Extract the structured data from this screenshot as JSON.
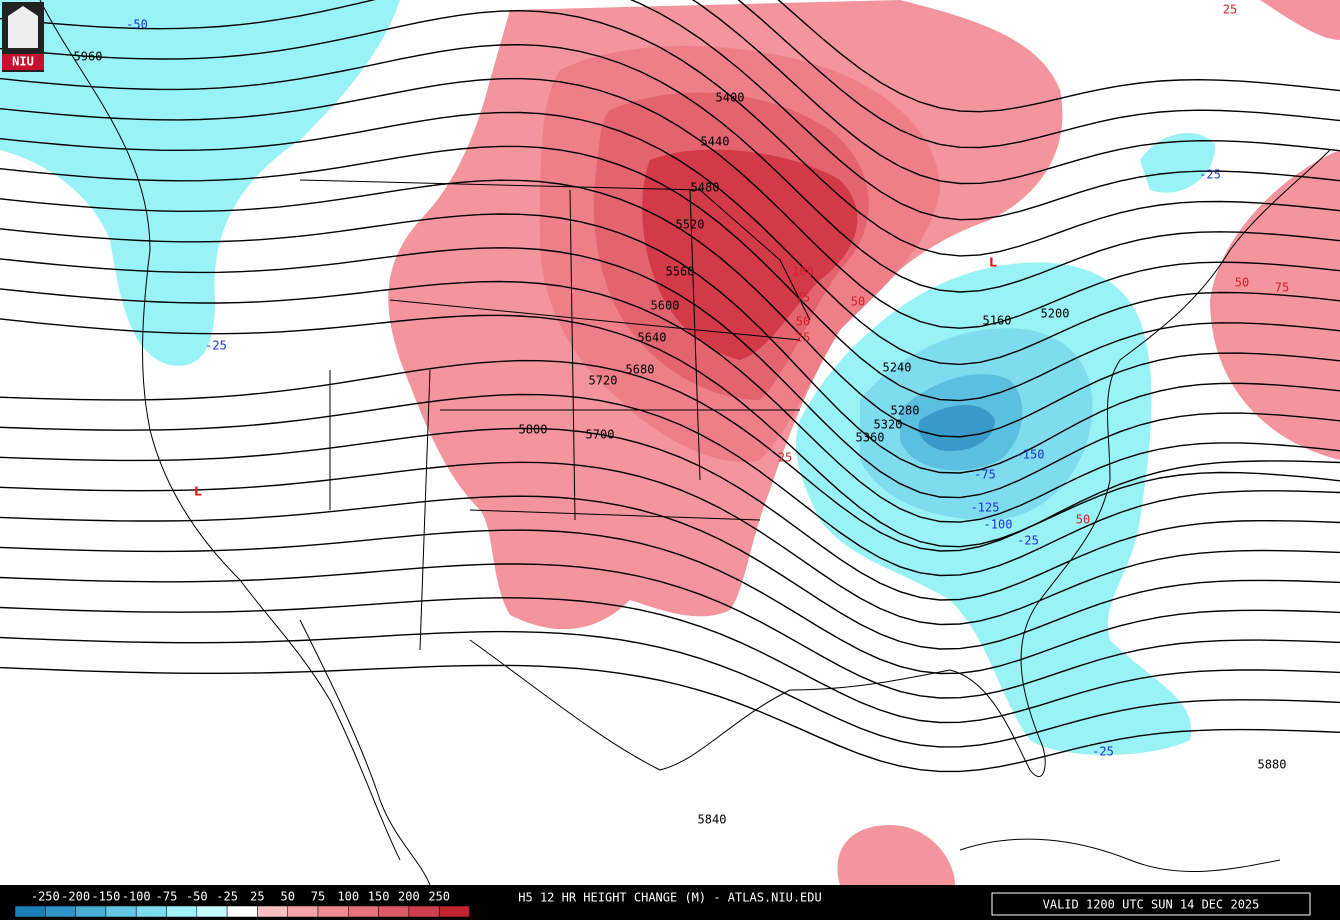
{
  "logo": "NIU",
  "colorbar": {
    "labels": [
      -250,
      -200,
      -150,
      -100,
      -75,
      -50,
      -25,
      25,
      50,
      75,
      100,
      150,
      200,
      250
    ],
    "colors": [
      "#1a7fb6",
      "#2f95c7",
      "#48aed6",
      "#63c6e3",
      "#7fdcee",
      "#9ff3f8",
      "#c4fbfd",
      "#ffffff",
      "#f9c0c4",
      "#f4a3a9",
      "#ef8a92",
      "#e6727c",
      "#dc5a66",
      "#cf3f4d",
      "#c1232f"
    ]
  },
  "title": "H5 12 HR HEIGHT CHANGE (M) - ATLAS.NIU.EDU",
  "valid": "VALID 1200 UTC SUN 14 DEC 2025",
  "contour_labels": [
    "5400",
    "5440",
    "5480",
    "5520",
    "5560",
    "5600",
    "5640",
    "5680",
    "5720",
    "5800",
    "5700",
    "5160",
    "5200",
    "5240",
    "5280",
    "5320",
    "5360",
    "5840",
    "5880",
    "5960"
  ],
  "change_labels": [
    "-50",
    "-25",
    "-25",
    "-25",
    "25",
    "50",
    "75",
    "-100",
    "-125",
    "-150",
    "-75",
    "50",
    "-25",
    "100",
    "75",
    "50",
    "25",
    "25",
    "50"
  ],
  "lows": [
    "L",
    "L"
  ]
}
